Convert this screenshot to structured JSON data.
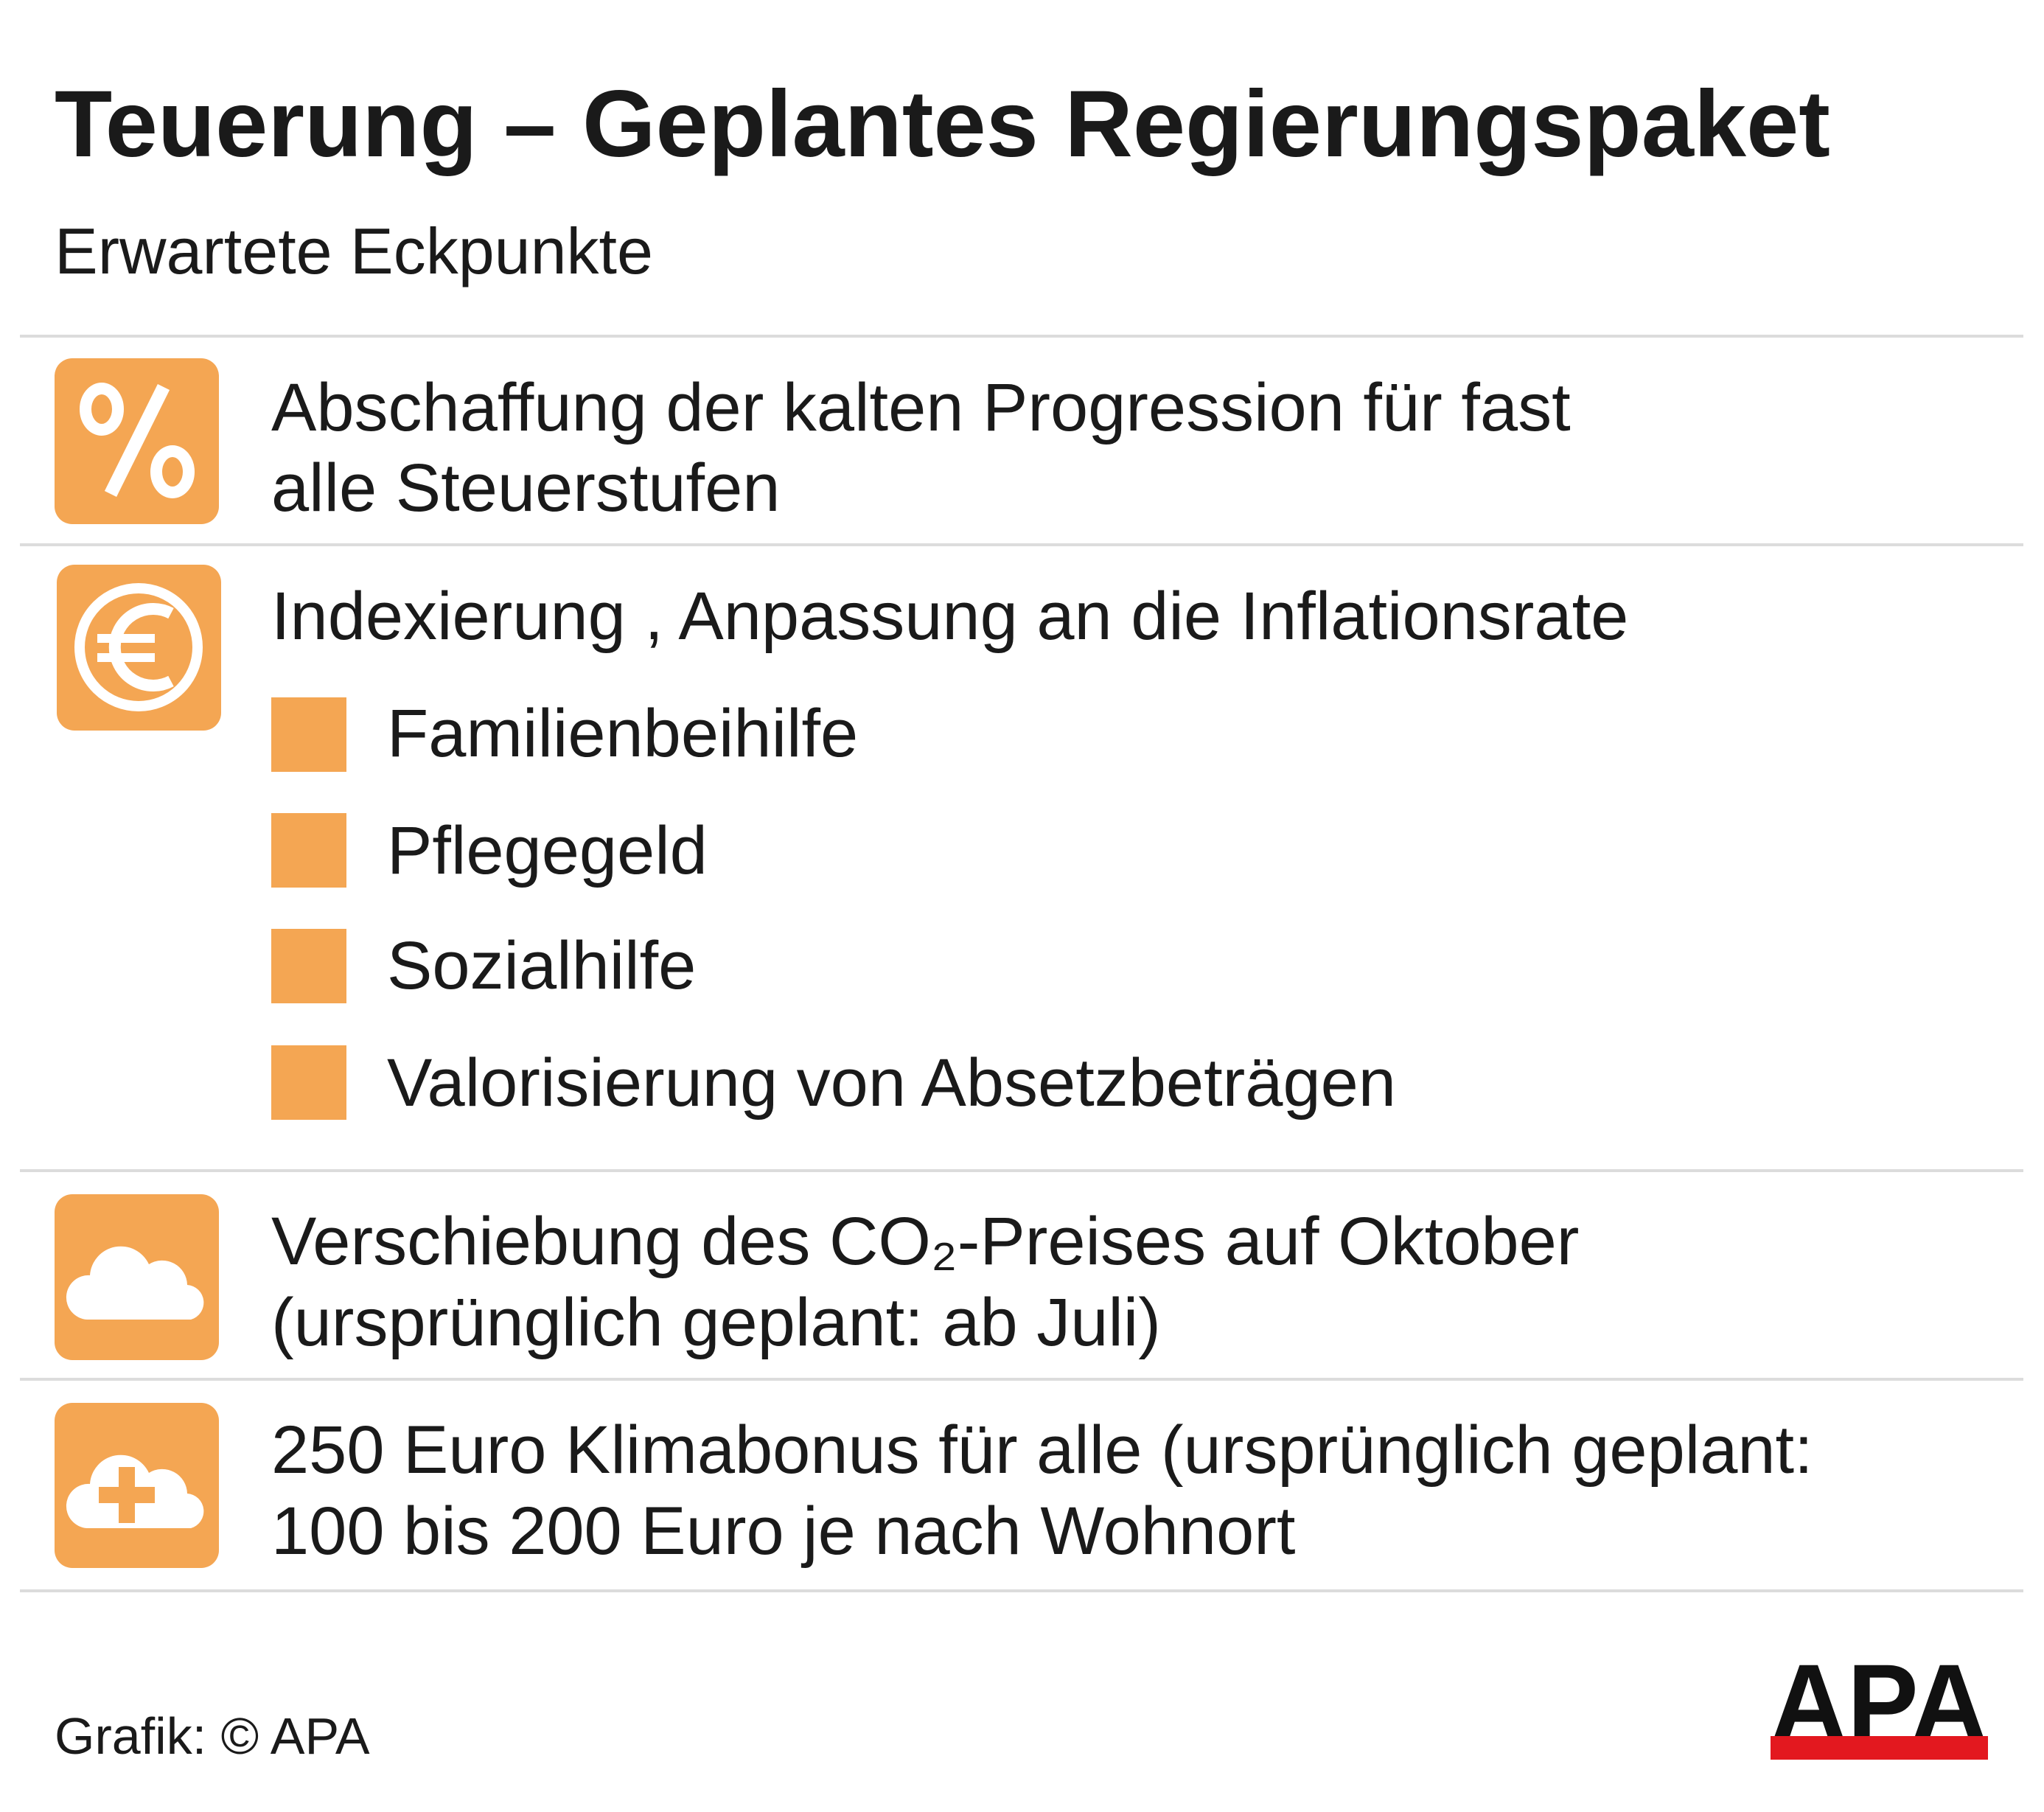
{
  "header": {
    "title": "Teuerung – Geplantes Regierungspaket",
    "subtitle": "Erwartete Eckpunkte"
  },
  "items": [
    {
      "lines": [
        "Abschaffung der kalten Progression für fast",
        "alle Steuerstufen"
      ]
    },
    {
      "lines": [
        "Indexierung , Anpassung an die Inflationsrate"
      ],
      "bullets": [
        "Familienbeihilfe",
        "Pflegegeld",
        "Sozialhilfe",
        "Valorisierung von Absetzbeträgen"
      ]
    },
    {
      "lines": [
        "Verschiebung des CO₂-Preises auf Oktober",
        "(ursprünglich geplant: ab Juli)"
      ]
    },
    {
      "lines": [
        "250 Euro Klimabonus für alle (ursprünglich geplant:",
        "100 bis 200 Euro je nach Wohnort"
      ]
    }
  ],
  "footer": {
    "source": "Grafik: © APA",
    "logo": "APA"
  }
}
